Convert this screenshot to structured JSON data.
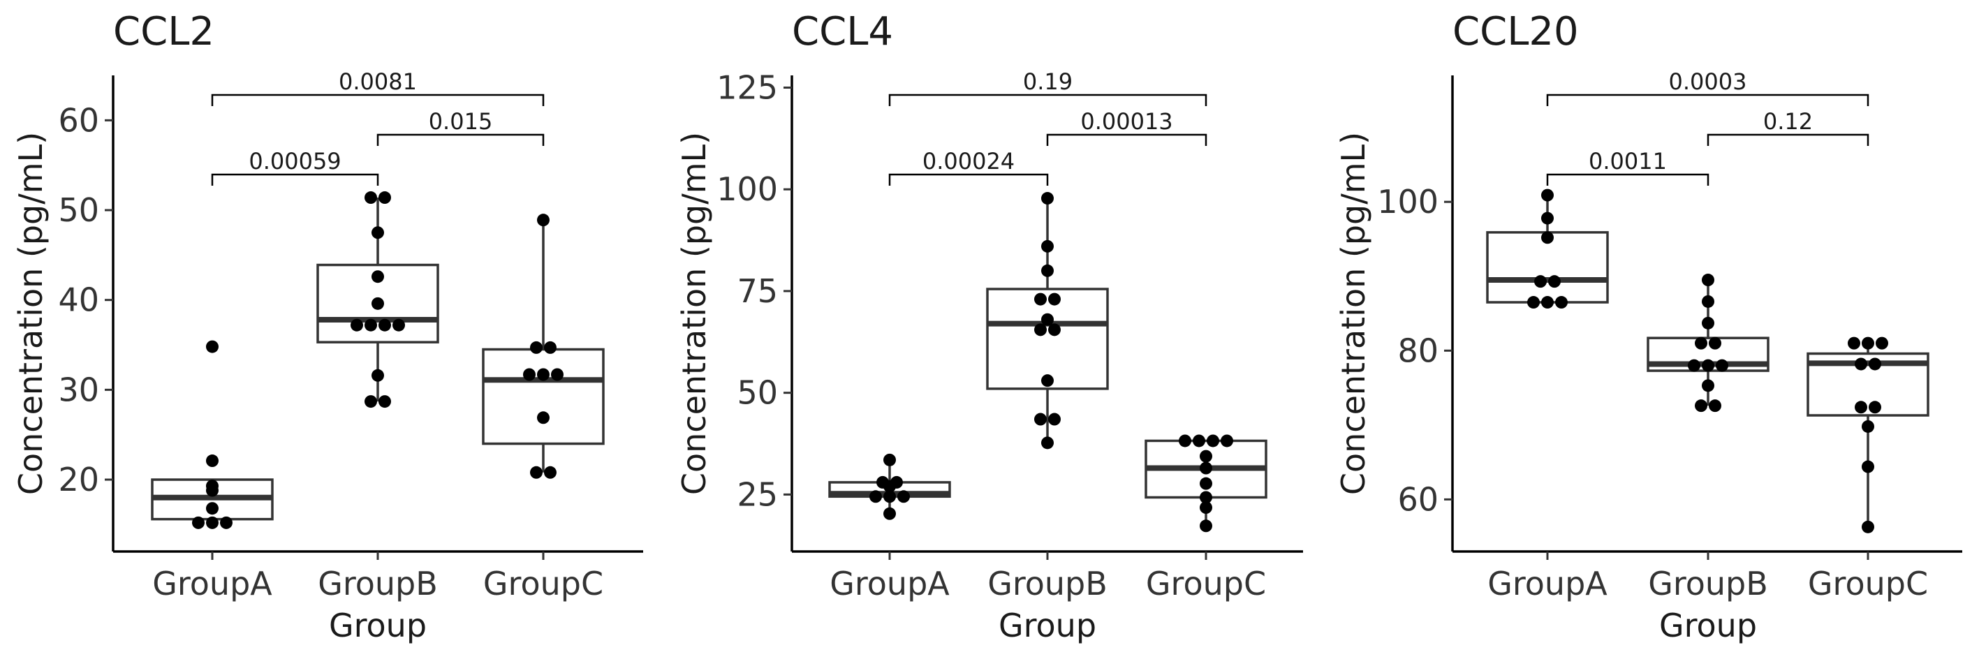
{
  "chart_data": [
    {
      "type": "box",
      "title": "CCL2",
      "xlabel": "Group",
      "ylabel": "Concentration (pg/mL)",
      "categories": [
        "GroupA",
        "GroupB",
        "GroupC"
      ],
      "ylim": [
        12,
        65
      ],
      "yticks": [
        20,
        30,
        40,
        50,
        60
      ],
      "boxes": [
        {
          "q1": 15.6,
          "median": 18.0,
          "q3": 20.0,
          "whisker_low": 15.2,
          "whisker_high": 20.0,
          "points": [
            15.2,
            15.2,
            15.2,
            16.8,
            18.8,
            19.3,
            22.1,
            34.8
          ]
        },
        {
          "q1": 35.3,
          "median": 37.8,
          "q3": 43.9,
          "whisker_low": 28.7,
          "whisker_high": 51.4,
          "points": [
            28.7,
            28.7,
            31.6,
            37.2,
            37.2,
            37.2,
            37.2,
            39.6,
            42.6,
            47.5,
            51.4,
            51.4
          ]
        },
        {
          "q1": 24.0,
          "median": 31.1,
          "q3": 34.5,
          "whisker_low": 20.8,
          "whisker_high": 48.9,
          "points": [
            20.8,
            20.8,
            26.9,
            31.7,
            31.7,
            31.7,
            34.7,
            34.7,
            48.9
          ]
        }
      ],
      "comparisons": [
        {
          "from": 0,
          "to": 1,
          "label": "0.00059",
          "level": 0
        },
        {
          "from": 1,
          "to": 2,
          "label": "0.015",
          "level": 1
        },
        {
          "from": 0,
          "to": 2,
          "label": "0.0081",
          "level": 2
        }
      ]
    },
    {
      "type": "box",
      "title": "CCL4",
      "xlabel": "Group",
      "ylabel": "Concentration (pg/mL)",
      "categories": [
        "GroupA",
        "GroupB",
        "GroupC"
      ],
      "ylim": [
        11,
        128
      ],
      "yticks": [
        25,
        50,
        75,
        100,
        125
      ],
      "boxes": [
        {
          "q1": 24.5,
          "median": 25.2,
          "q3": 28.0,
          "whisker_low": 20.3,
          "whisker_high": 33.5,
          "points": [
            20.3,
            24.5,
            24.5,
            24.5,
            27.0,
            28.0,
            28.0,
            33.5
          ]
        },
        {
          "q1": 51.0,
          "median": 67.0,
          "q3": 75.5,
          "whisker_low": 37.7,
          "whisker_high": 97.8,
          "points": [
            37.7,
            43.5,
            43.5,
            53.0,
            65.5,
            65.5,
            68.0,
            73.0,
            73.0,
            80.0,
            86.0,
            97.8
          ]
        },
        {
          "q1": 24.3,
          "median": 31.5,
          "q3": 38.2,
          "whisker_low": 17.3,
          "whisker_high": 38.2,
          "points": [
            17.3,
            21.8,
            24.3,
            27.7,
            31.5,
            34.4,
            38.2,
            38.2,
            38.2,
            38.2
          ]
        }
      ],
      "comparisons": [
        {
          "from": 0,
          "to": 1,
          "label": "0.00024",
          "level": 0
        },
        {
          "from": 1,
          "to": 2,
          "label": "0.00013",
          "level": 1
        },
        {
          "from": 0,
          "to": 2,
          "label": "0.19",
          "level": 2
        }
      ]
    },
    {
      "type": "box",
      "title": "CCL20",
      "xlabel": "Group",
      "ylabel": "Concentration (pg/mL)",
      "categories": [
        "GroupA",
        "GroupB",
        "GroupC"
      ],
      "ylim": [
        53,
        117
      ],
      "yticks": [
        60,
        80,
        100
      ],
      "boxes": [
        {
          "q1": 86.5,
          "median": 89.5,
          "q3": 95.9,
          "whisker_low": 86.5,
          "whisker_high": 100.9,
          "points": [
            86.5,
            86.5,
            86.5,
            89.3,
            89.3,
            95.2,
            97.8,
            100.9
          ]
        },
        {
          "q1": 77.3,
          "median": 78.2,
          "q3": 81.7,
          "whisker_low": 72.6,
          "whisker_high": 89.5,
          "points": [
            72.6,
            72.6,
            75.3,
            78.0,
            78.0,
            78.0,
            81.0,
            81.0,
            83.7,
            86.6,
            89.5
          ]
        },
        {
          "q1": 71.3,
          "median": 78.3,
          "q3": 79.6,
          "whisker_low": 56.3,
          "whisker_high": 81.0,
          "points": [
            56.3,
            64.4,
            69.8,
            72.4,
            72.4,
            78.2,
            78.2,
            81.0,
            81.0,
            81.0
          ]
        }
      ],
      "comparisons": [
        {
          "from": 0,
          "to": 1,
          "label": "0.0011",
          "level": 0
        },
        {
          "from": 1,
          "to": 2,
          "label": "0.12",
          "level": 1
        },
        {
          "from": 0,
          "to": 2,
          "label": "0.0003",
          "level": 2
        }
      ]
    }
  ]
}
